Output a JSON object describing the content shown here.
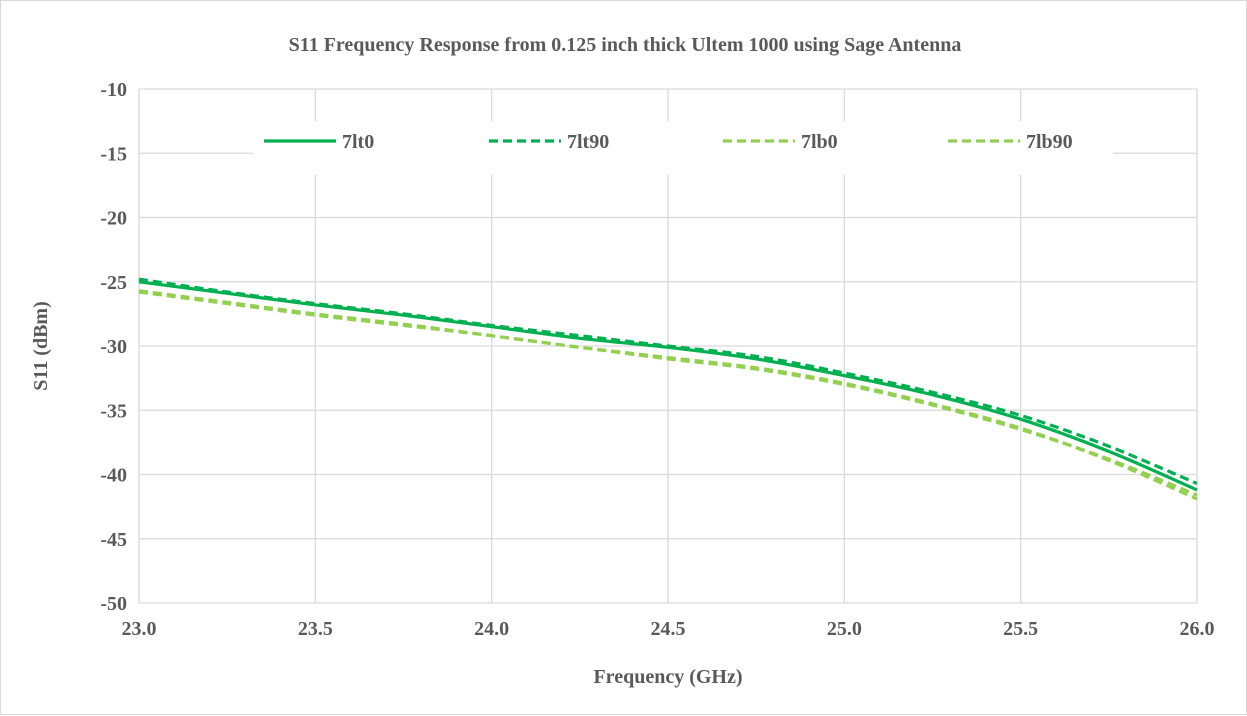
{
  "chart_data": {
    "type": "line",
    "title": "S11 Frequency Response from 0.125 inch thick Ultem 1000 using Sage Antenna",
    "xlabel": "Frequency (GHz)",
    "ylabel": "S11 (dBm)",
    "xlim": [
      23.0,
      26.0
    ],
    "ylim": [
      -50,
      -10
    ],
    "x_ticks": [
      "23.0",
      "23.5",
      "24.0",
      "24.5",
      "25.0",
      "25.5",
      "26.0"
    ],
    "y_ticks": [
      "-10",
      "-15",
      "-20",
      "-25",
      "-30",
      "-35",
      "-40",
      "-45",
      "-50"
    ],
    "grid": true,
    "legend_position": "top",
    "x": [
      23.0,
      23.25,
      23.5,
      23.75,
      24.0,
      24.25,
      24.5,
      24.75,
      25.0,
      25.25,
      25.5,
      25.75,
      26.0
    ],
    "series": [
      {
        "name": "7lt0",
        "color": "#00b050",
        "dash": "solid",
        "values": [
          -25.0,
          -25.9,
          -26.8,
          -27.6,
          -28.5,
          -29.4,
          -30.1,
          -31.0,
          -32.3,
          -33.8,
          -35.7,
          -38.2,
          -41.2
        ]
      },
      {
        "name": "7lt90",
        "color": "#00b050",
        "dash": "dashed",
        "values": [
          -24.8,
          -25.8,
          -26.7,
          -27.5,
          -28.4,
          -29.2,
          -30.0,
          -30.8,
          -32.1,
          -33.6,
          -35.4,
          -37.8,
          -40.7
        ]
      },
      {
        "name": "7lb0",
        "color": "#92d050",
        "dash": "dashed",
        "values": [
          -25.8,
          -26.7,
          -27.6,
          -28.4,
          -29.2,
          -30.1,
          -31.0,
          -31.8,
          -33.0,
          -34.6,
          -36.5,
          -38.8,
          -41.6
        ]
      },
      {
        "name": "7lb90",
        "color": "#92d050",
        "dash": "dashed",
        "values": [
          -25.7,
          -26.6,
          -27.5,
          -28.3,
          -29.2,
          -30.1,
          -30.9,
          -31.7,
          -32.9,
          -34.5,
          -36.4,
          -38.9,
          -41.9
        ]
      }
    ]
  }
}
